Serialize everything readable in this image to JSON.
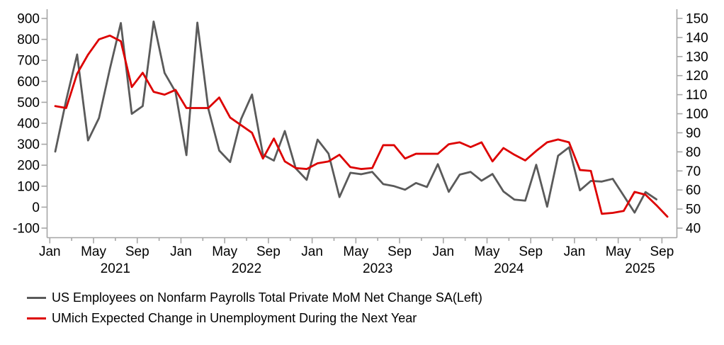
{
  "chart_data": {
    "type": "line",
    "title": "",
    "x_axis": {
      "unit": "month",
      "start": "Jan 2021",
      "end": "Sep 2025",
      "tick_labels": [
        "Jan",
        "May",
        "Sep"
      ],
      "year_labels": [
        "2021",
        "2022",
        "2023",
        "2024",
        "2025"
      ]
    },
    "left_axis": {
      "min": -100,
      "max": 900,
      "tick_step": 100,
      "tick_labels": [
        "900",
        "800",
        "700",
        "600",
        "500",
        "400",
        "300",
        "200",
        "100",
        "0",
        "-100"
      ]
    },
    "right_axis": {
      "min": 40,
      "max": 150,
      "tick_step": 10,
      "tick_labels": [
        "150",
        "140",
        "130",
        "120",
        "110",
        "100",
        "90",
        "80",
        "70",
        "60",
        "50",
        "40"
      ]
    },
    "grid": "off",
    "legend_position": "bottom-left",
    "series": [
      {
        "name": "US Employees on Nonfarm Payrolls Total Private MoM Net Change SA(Left)",
        "axis": "left",
        "color": "#5a5a5a",
        "first_month": "Jan 2021",
        "last_month": "Aug 2025",
        "values": [
          265,
          510,
          728,
          318,
          425,
          660,
          878,
          445,
          482,
          885,
          640,
          550,
          248,
          880,
          470,
          270,
          215,
          420,
          537,
          250,
          222,
          363,
          185,
          130,
          322,
          255,
          48,
          164,
          157,
          168,
          110,
          100,
          83,
          115,
          96,
          205,
          73,
          155,
          168,
          126,
          158,
          75,
          36,
          31,
          202,
          2,
          245,
          285,
          80,
          125,
          122,
          135,
          55,
          -26,
          72,
          37
        ]
      },
      {
        "name": "UMich Expected Change in Unemployment During the Next Year",
        "axis": "right",
        "color": "#dd0000",
        "first_month": "Jan 2021",
        "last_month": "Sep 2025",
        "values": [
          104,
          103,
          121,
          131,
          139,
          141,
          138,
          114,
          121.5,
          111.5,
          110,
          112.5,
          103,
          103,
          103,
          108.5,
          98,
          94,
          90,
          76.5,
          87,
          75,
          71.5,
          71,
          74,
          75,
          78.5,
          72,
          71,
          71.5,
          83.5,
          83.5,
          76.5,
          79,
          79,
          79,
          84,
          85,
          82.5,
          85,
          75,
          82,
          78.5,
          75.5,
          80.5,
          85,
          86.5,
          85,
          70.5,
          70,
          47.5,
          48,
          49,
          59,
          57.5,
          52,
          46
        ]
      }
    ]
  }
}
